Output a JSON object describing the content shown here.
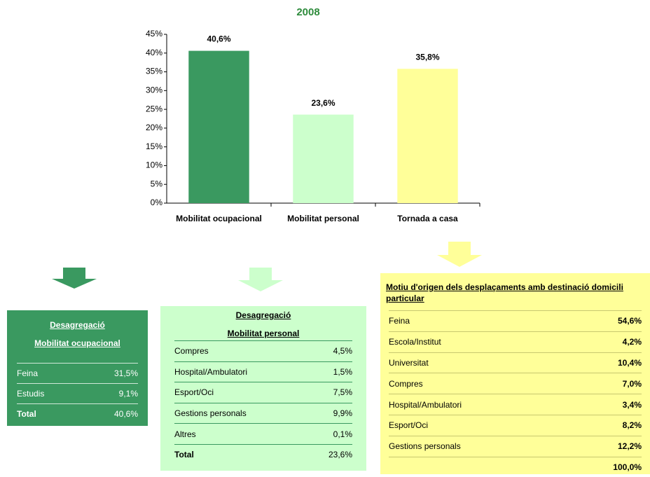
{
  "chart_data": {
    "type": "bar",
    "title": "2008",
    "categories": [
      "Mobilitat ocupacional",
      "Mobilitat personal",
      "Tornada a casa"
    ],
    "values": [
      40.6,
      23.6,
      35.8
    ],
    "value_labels": [
      "40,6%",
      "23,6%",
      "35,8%"
    ],
    "colors": [
      "#3a9960",
      "#ccffcc",
      "#ffff99"
    ],
    "ylim": [
      0,
      45
    ],
    "yticks": [
      {
        "value": 0,
        "label": "0%"
      },
      {
        "value": 5,
        "label": "5%"
      },
      {
        "value": 10,
        "label": "10%"
      },
      {
        "value": 15,
        "label": "15%"
      },
      {
        "value": 20,
        "label": "20%"
      },
      {
        "value": 25,
        "label": "25%"
      },
      {
        "value": 30,
        "label": "30%"
      },
      {
        "value": 35,
        "label": "35%"
      },
      {
        "value": 40,
        "label": "40%"
      },
      {
        "value": 45,
        "label": "45%"
      }
    ],
    "grid": false
  },
  "tables": [
    {
      "title": [
        "Desagregació",
        "Mobilitat ocupacional"
      ],
      "rows": [
        [
          "Feina",
          "31,5%"
        ],
        [
          "Estudis",
          "9,1%"
        ]
      ],
      "total": [
        "Total",
        "40,6%"
      ]
    },
    {
      "title": [
        "Desagregació",
        "Mobilitat personal"
      ],
      "rows": [
        [
          "Compres",
          "4,5%"
        ],
        [
          "Hospital/Ambulatori",
          "1,5%"
        ],
        [
          "Esport/Oci",
          "7,5%"
        ],
        [
          "Gestions personals",
          "9,9%"
        ],
        [
          "Altres",
          "0,1%"
        ]
      ],
      "total": [
        "Total",
        "23,6%"
      ]
    },
    {
      "title": [
        "Motiu d'origen dels desplaçaments amb destinació domicili particular"
      ],
      "rows": [
        [
          "Feina",
          "54,6%"
        ],
        [
          "Escola/Institut",
          "4,2%"
        ],
        [
          "Universitat",
          "10,4%"
        ],
        [
          "Compres",
          "7,0%"
        ],
        [
          "Hospital/Ambulatori",
          "3,4%"
        ],
        [
          "Esport/Oci",
          "8,2%"
        ],
        [
          "Gestions personals",
          "12,2%"
        ]
      ],
      "total": "100,0%"
    }
  ]
}
